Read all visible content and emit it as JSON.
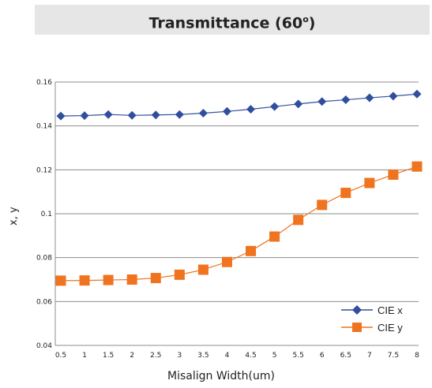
{
  "title": {
    "main": "Transmittance (60",
    "sup": "o",
    "close": ")"
  },
  "chart_data": {
    "type": "line",
    "title": "Transmittance (60°)",
    "xlabel": "Misalign Width(um)",
    "ylabel": "x, y",
    "categories": [
      "0.5",
      "1",
      "1.5",
      "2",
      "2.5",
      "3",
      "3.5",
      "4",
      "4.5",
      "5",
      "5.5",
      "6",
      "6.5",
      "7",
      "7.5",
      "8"
    ],
    "yticks": [
      "0.04",
      "0.06",
      "0.08",
      "0.1",
      "0.12",
      "0.14",
      "0.16"
    ],
    "ylim": [
      0.04,
      0.16
    ],
    "grid": true,
    "legend_position": "bottom-right",
    "series": [
      {
        "name": "CIE x",
        "marker": "diamond",
        "color": "#2f4f9e",
        "values": [
          0.1445,
          0.1447,
          0.1452,
          0.1448,
          0.145,
          0.1452,
          0.1458,
          0.1466,
          0.1476,
          0.1488,
          0.15,
          0.1511,
          0.1519,
          0.1528,
          0.1536,
          0.1545
        ]
      },
      {
        "name": "CIE y",
        "marker": "square",
        "color": "#f07320",
        "values": [
          0.0695,
          0.0696,
          0.0698,
          0.07,
          0.0707,
          0.0722,
          0.0745,
          0.078,
          0.083,
          0.0896,
          0.0972,
          0.104,
          0.1095,
          0.114,
          0.1178,
          0.1215
        ]
      }
    ]
  }
}
